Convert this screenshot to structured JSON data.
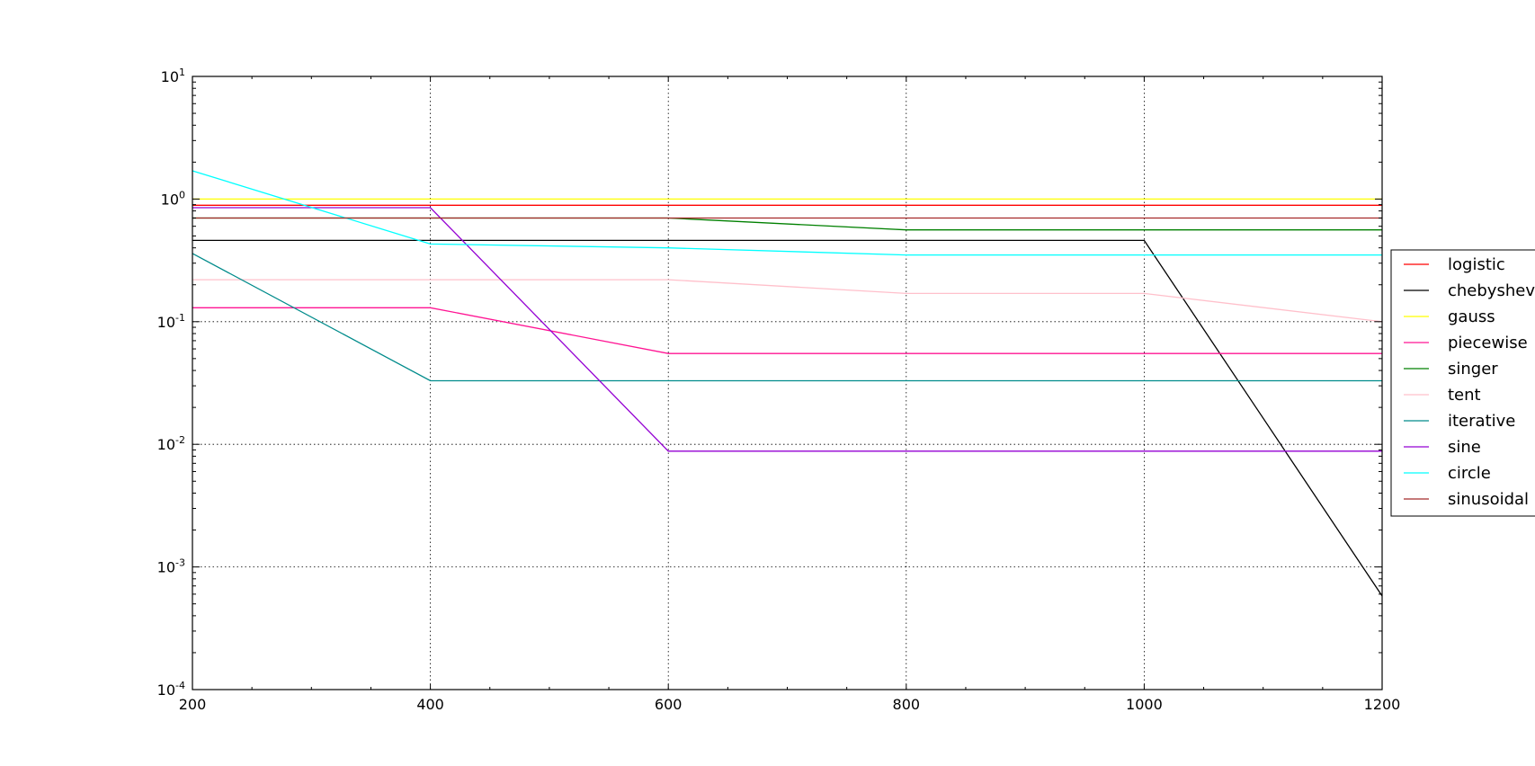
{
  "chart_data": {
    "type": "line",
    "title": "",
    "xlabel": "",
    "ylabel": "",
    "x": [
      200,
      400,
      600,
      800,
      1000,
      1200
    ],
    "xlim": [
      200,
      1200
    ],
    "ylim": [
      0.0001,
      10
    ],
    "yscale": "log",
    "grid": true,
    "x_ticks": [
      "200",
      "400",
      "600",
      "800",
      "1000",
      "1200"
    ],
    "y_ticks": [
      {
        "base": "10",
        "exp": "1"
      },
      {
        "base": "10",
        "exp": "0"
      },
      {
        "base": "10",
        "exp": "-1"
      },
      {
        "base": "10",
        "exp": "-2"
      },
      {
        "base": "10",
        "exp": "-3"
      },
      {
        "base": "10",
        "exp": "-4"
      }
    ],
    "legend_position": "right",
    "series": [
      {
        "name": "logistic",
        "color": "#ff0000",
        "values": [
          0.89,
          0.89,
          0.89,
          0.89,
          0.89,
          0.89
        ]
      },
      {
        "name": "chebyshev",
        "color": "#000000",
        "values": [
          0.46,
          0.46,
          0.46,
          0.46,
          0.46,
          0.00058
        ]
      },
      {
        "name": "gauss",
        "color": "#ffff00",
        "values": [
          1.0,
          1.0,
          1.0,
          1.0,
          1.0,
          1.0
        ]
      },
      {
        "name": "piecewise",
        "color": "#ff1493",
        "values": [
          0.13,
          0.13,
          0.055,
          0.055,
          0.055,
          0.055
        ]
      },
      {
        "name": "singer",
        "color": "#008000",
        "values": [
          0.7,
          0.7,
          0.7,
          0.56,
          0.56,
          0.56
        ]
      },
      {
        "name": "tent",
        "color": "#ffc0cb",
        "values": [
          0.22,
          0.22,
          0.22,
          0.17,
          0.17,
          0.1
        ]
      },
      {
        "name": "iterative",
        "color": "#008b8b",
        "values": [
          0.36,
          0.033,
          0.033,
          0.033,
          0.033,
          0.033
        ]
      },
      {
        "name": "sine",
        "color": "#9400d3",
        "values": [
          0.85,
          0.85,
          0.0088,
          0.0088,
          0.0088,
          0.0088
        ]
      },
      {
        "name": "circle",
        "color": "#00ffff",
        "values": [
          1.7,
          0.43,
          0.4,
          0.35,
          0.35,
          0.35
        ]
      },
      {
        "name": "sinusoidal",
        "color": "#a52a2a",
        "values": [
          0.7,
          0.7,
          0.7,
          0.7,
          0.7,
          0.7
        ]
      }
    ]
  }
}
